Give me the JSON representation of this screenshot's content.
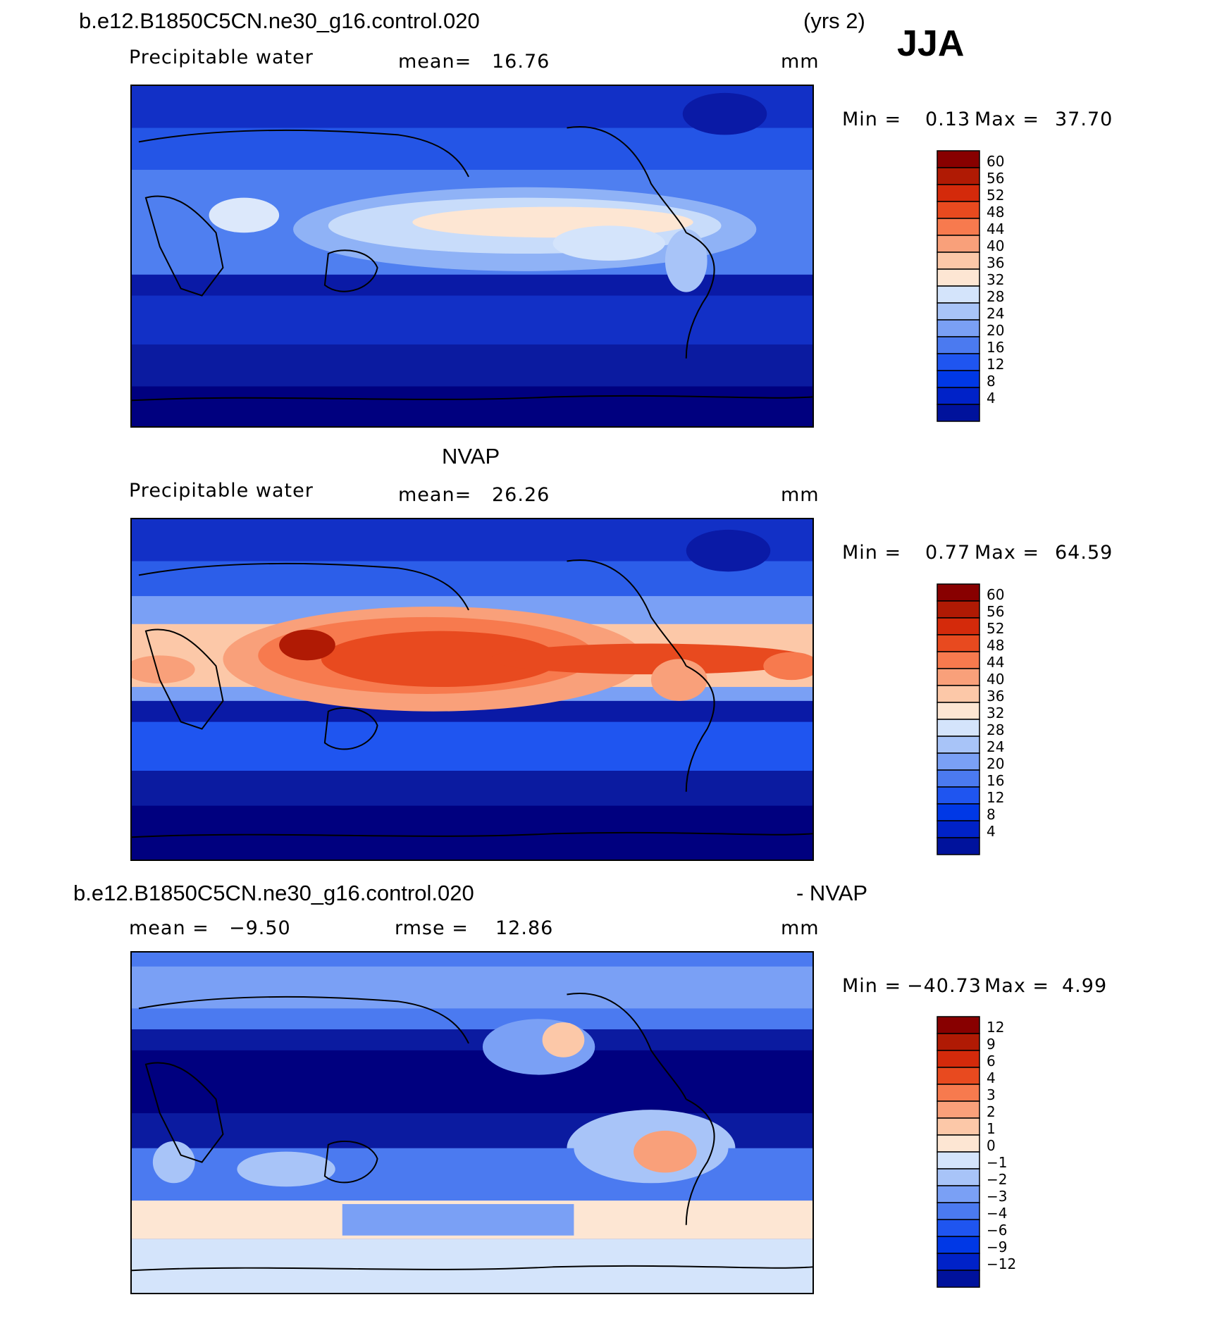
{
  "header": {
    "case_name": "b.e12.B1850C5CN.ne30_g16.control.020",
    "years": "(yrs 2)",
    "season": "JJA"
  },
  "palettes": {
    "abs": [
      "#00007f",
      "#00129c",
      "#0022c8",
      "#0038e6",
      "#1f55f0",
      "#4b7af0",
      "#7aa0f5",
      "#a8c4f8",
      "#d4e4fb",
      "#fde6d3",
      "#fcc8a8",
      "#f9a07a",
      "#f77a4e",
      "#e84a1f",
      "#d42a0b",
      "#b01a04",
      "#880000"
    ],
    "diff": [
      "#00007f",
      "#00129c",
      "#0022c8",
      "#0038e6",
      "#1f55f0",
      "#4b7af0",
      "#7aa0f5",
      "#a8c4f8",
      "#d4e4fb",
      "#fde6d3",
      "#fcc8a8",
      "#f9a07a",
      "#f77a4e",
      "#e84a1f",
      "#d42a0b",
      "#b01a04",
      "#880000"
    ]
  },
  "panels": [
    {
      "id": "model",
      "variable": "Precipitable water",
      "stat_label": "mean=",
      "stat_value": "16.76",
      "units": "mm",
      "min_label": "Min =",
      "min_value": "0.13",
      "max_label": "Max =",
      "max_value": "37.70",
      "colorbar_levels": [
        "60",
        "56",
        "52",
        "48",
        "44",
        "40",
        "36",
        "32",
        "28",
        "24",
        "20",
        "16",
        "12",
        "8",
        "4"
      ]
    },
    {
      "id": "obs",
      "title": "NVAP",
      "variable": "Precipitable water",
      "stat_label": "mean=",
      "stat_value": "26.26",
      "units": "mm",
      "min_label": "Min =",
      "min_value": "0.77",
      "max_label": "Max =",
      "max_value": "64.59",
      "colorbar_levels": [
        "60",
        "56",
        "52",
        "48",
        "44",
        "40",
        "36",
        "32",
        "28",
        "24",
        "20",
        "16",
        "12",
        "8",
        "4"
      ]
    },
    {
      "id": "diff",
      "title_left": "b.e12.B1850C5CN.ne30_g16.control.020",
      "title_right": "- NVAP",
      "stat_label": "mean =",
      "stat_value": "−9.50",
      "stat2_label": "rmse =",
      "stat2_value": "12.86",
      "units": "mm",
      "min_label": "Min =",
      "min_value": "−40.73",
      "max_label": "Max =",
      "max_value": "4.99",
      "colorbar_levels": [
        "12",
        "9",
        "6",
        "4",
        "3",
        "2",
        "1",
        "0",
        "−1",
        "−2",
        "−3",
        "−4",
        "−6",
        "−9",
        "−12"
      ]
    }
  ]
}
